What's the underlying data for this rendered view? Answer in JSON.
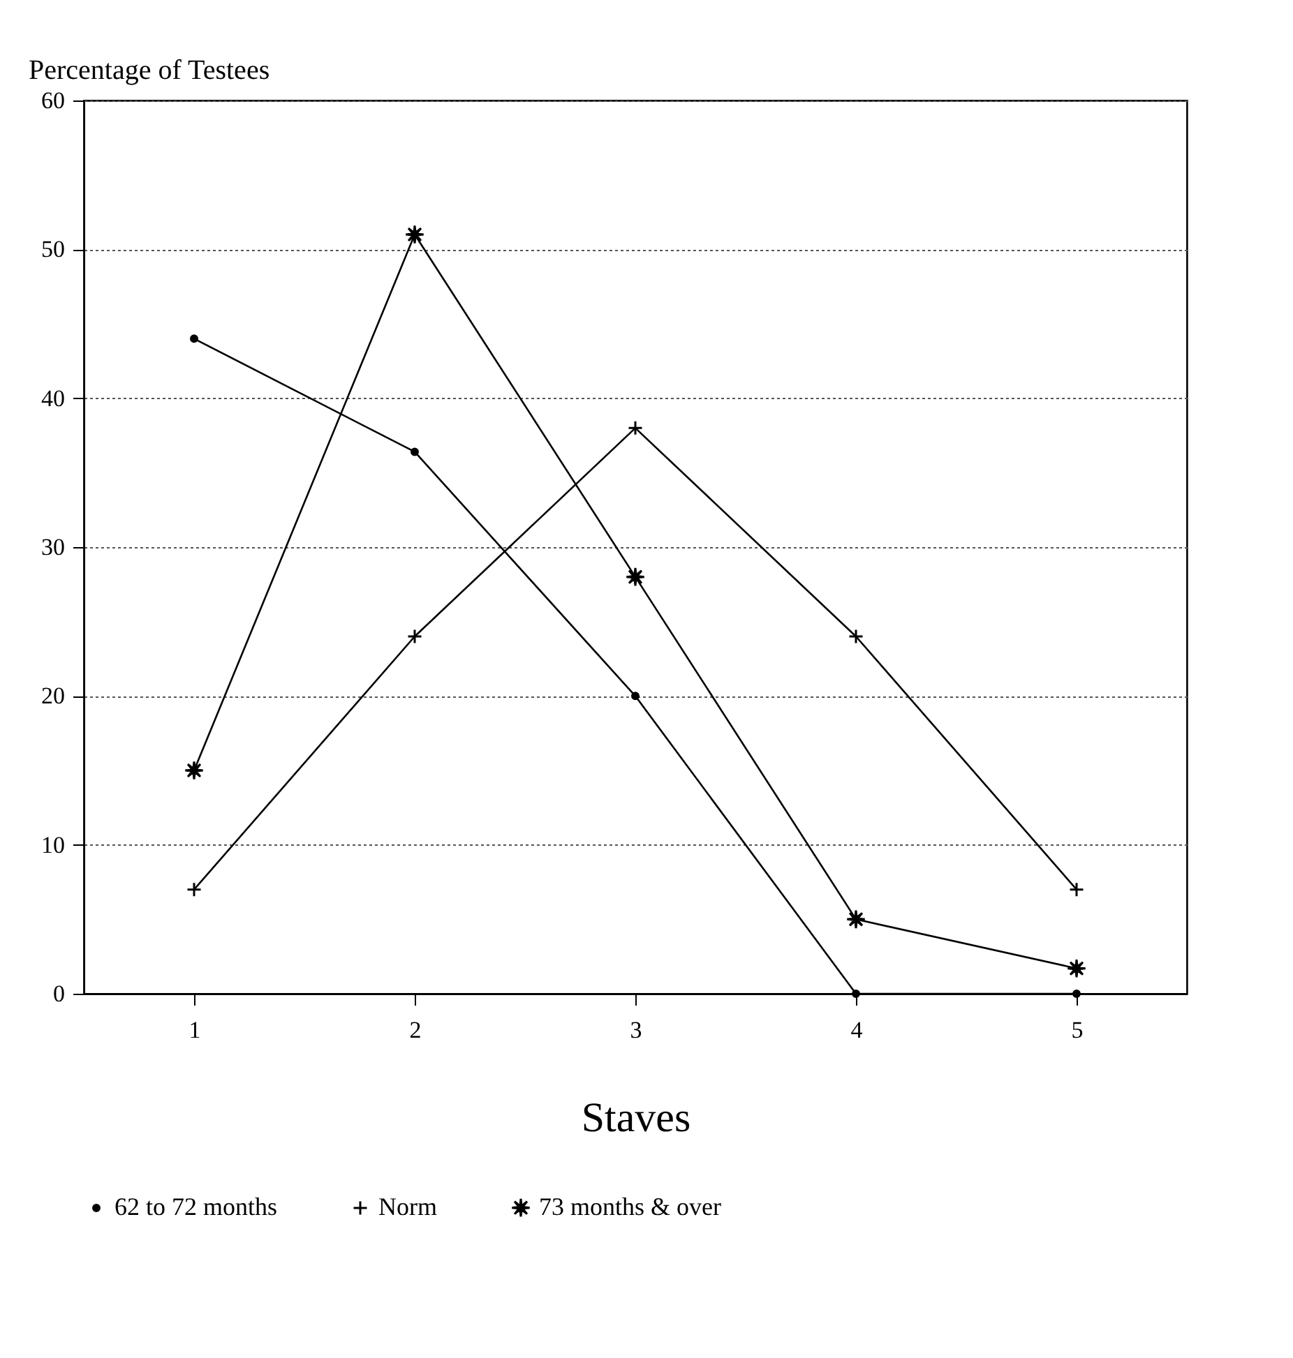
{
  "chart_data": {
    "type": "line",
    "xlabel": "Staves",
    "ylabel": "Percentage of Testees",
    "x": [
      1,
      2,
      3,
      4,
      5
    ],
    "xlim": [
      0.5,
      5.5
    ],
    "xticks": [
      1,
      2,
      3,
      4,
      5
    ],
    "ylim": [
      0,
      60
    ],
    "yticks": [
      0,
      10,
      20,
      30,
      40,
      50,
      60
    ],
    "grid": "y",
    "legend": "bottom",
    "line_style": "solid",
    "series": [
      {
        "name": "62 to 72 months",
        "color": "#000000",
        "marker": "circle",
        "values": [
          44,
          36.4,
          20,
          0,
          0
        ]
      },
      {
        "name": "Norm",
        "color": "#000000",
        "marker": "cross",
        "values": [
          7,
          24,
          38,
          24,
          7
        ]
      },
      {
        "name": "73 months & over",
        "color": "#000000",
        "marker": "star",
        "values": [
          15,
          51,
          28,
          5,
          1.7
        ]
      }
    ]
  }
}
